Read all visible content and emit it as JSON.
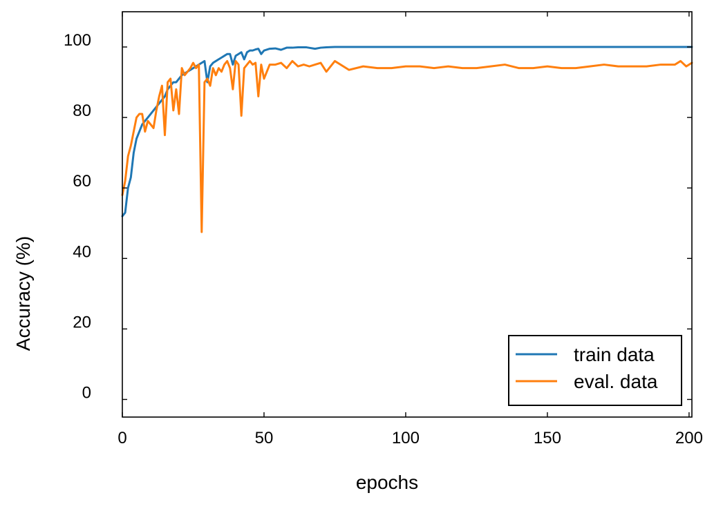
{
  "chart_data": {
    "type": "line",
    "title": "",
    "xlabel": "epochs",
    "ylabel": "Accuracy (%)",
    "xlim": [
      0,
      201
    ],
    "ylim": [
      -5,
      110
    ],
    "xticks": [
      0,
      50,
      100,
      150,
      200
    ],
    "yticks": [
      0,
      20,
      40,
      60,
      80,
      100
    ],
    "grid": false,
    "legend_position": "lower-right",
    "series": [
      {
        "name": "train data",
        "color": "#1f77b4",
        "x": [
          0,
          1,
          2,
          3,
          4,
          5,
          6,
          7,
          8,
          9,
          10,
          11,
          12,
          13,
          14,
          15,
          16,
          17,
          18,
          19,
          20,
          21,
          22,
          23,
          24,
          25,
          26,
          27,
          28,
          29,
          30,
          31,
          32,
          33,
          34,
          35,
          36,
          37,
          38,
          39,
          40,
          41,
          42,
          43,
          44,
          45,
          46,
          47,
          48,
          49,
          50,
          52,
          54,
          56,
          58,
          60,
          62,
          65,
          68,
          70,
          72,
          75,
          80,
          90,
          100,
          120,
          140,
          160,
          180,
          200,
          201
        ],
        "y": [
          52,
          53,
          60,
          63,
          70,
          74,
          76,
          78,
          79,
          80,
          81,
          82,
          83,
          84,
          85,
          86,
          88,
          89,
          90,
          90,
          91,
          92,
          92.5,
          93,
          93.5,
          94,
          94.5,
          95,
          95.5,
          96,
          90,
          94.5,
          95.5,
          96,
          96.5,
          97,
          97.5,
          98,
          98,
          95,
          97.5,
          98,
          98.5,
          96.5,
          98.5,
          99,
          99,
          99.3,
          99.5,
          98,
          99,
          99.5,
          99.6,
          99.2,
          99.8,
          99.8,
          99.9,
          99.9,
          99.5,
          99.8,
          99.9,
          100,
          100,
          100,
          100,
          100,
          100,
          100,
          100,
          100,
          100
        ]
      },
      {
        "name": "eval. data",
        "color": "#ff7f0e",
        "x": [
          0,
          1,
          2,
          3,
          4,
          5,
          6,
          7,
          8,
          9,
          10,
          11,
          12,
          13,
          14,
          15,
          16,
          17,
          18,
          19,
          20,
          21,
          22,
          23,
          24,
          25,
          26,
          27,
          28,
          29,
          30,
          31,
          32,
          33,
          34,
          35,
          36,
          37,
          38,
          39,
          40,
          41,
          42,
          43,
          44,
          45,
          46,
          47,
          48,
          49,
          50,
          52,
          54,
          56,
          58,
          60,
          62,
          64,
          66,
          68,
          70,
          72,
          75,
          80,
          85,
          90,
          95,
          100,
          105,
          110,
          115,
          120,
          125,
          130,
          135,
          140,
          145,
          150,
          155,
          160,
          165,
          170,
          175,
          180,
          185,
          190,
          195,
          197,
          199,
          201
        ],
        "y": [
          58,
          62,
          69,
          72,
          76,
          80,
          81,
          81,
          76,
          79,
          78,
          77,
          82,
          86,
          89,
          75,
          90,
          91,
          82,
          88,
          81,
          94,
          92,
          93,
          94,
          95.5,
          94,
          95,
          47.5,
          90,
          91,
          89,
          94,
          92,
          94,
          93,
          95,
          96,
          94,
          88,
          96,
          95,
          80.5,
          94,
          95,
          96,
          95,
          95.5,
          86,
          95,
          91,
          95,
          95,
          95.5,
          94,
          96,
          94.5,
          95,
          94.5,
          95,
          95.5,
          93,
          96,
          93.5,
          94.5,
          94,
          94,
          94.5,
          94.5,
          94,
          94.5,
          94,
          94,
          94.5,
          95,
          94,
          94,
          94.5,
          94,
          94,
          94.5,
          95,
          94.5,
          94.5,
          94.5,
          95,
          95,
          96,
          94.5,
          95.5
        ]
      }
    ]
  }
}
